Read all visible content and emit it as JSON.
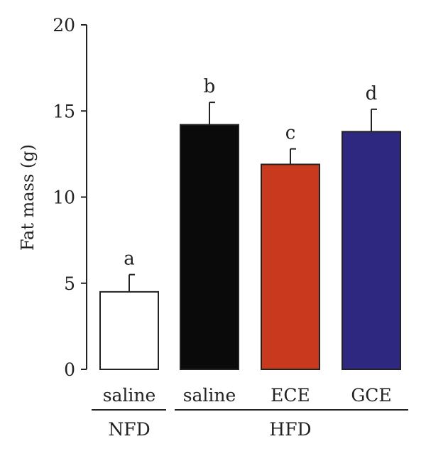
{
  "chart_data": {
    "type": "bar",
    "ylabel": "Fat mass (g)",
    "ylim": [
      0,
      20
    ],
    "yticks": [
      0,
      5,
      10,
      15,
      20
    ],
    "categories": [
      "saline",
      "saline",
      "ECE",
      "GCE"
    ],
    "groups": [
      {
        "label": "NFD",
        "categories": [
          0
        ]
      },
      {
        "label": "HFD",
        "categories": [
          1,
          2,
          3
        ]
      }
    ],
    "values": [
      4.5,
      14.2,
      11.9,
      13.8
    ],
    "errors": [
      1.0,
      1.3,
      0.9,
      1.3
    ],
    "significance_letters": [
      "a",
      "b",
      "c",
      "d"
    ],
    "bar_colors": [
      "#ffffff",
      "#0a0a0a",
      "#c8391d",
      "#2e2880"
    ]
  }
}
